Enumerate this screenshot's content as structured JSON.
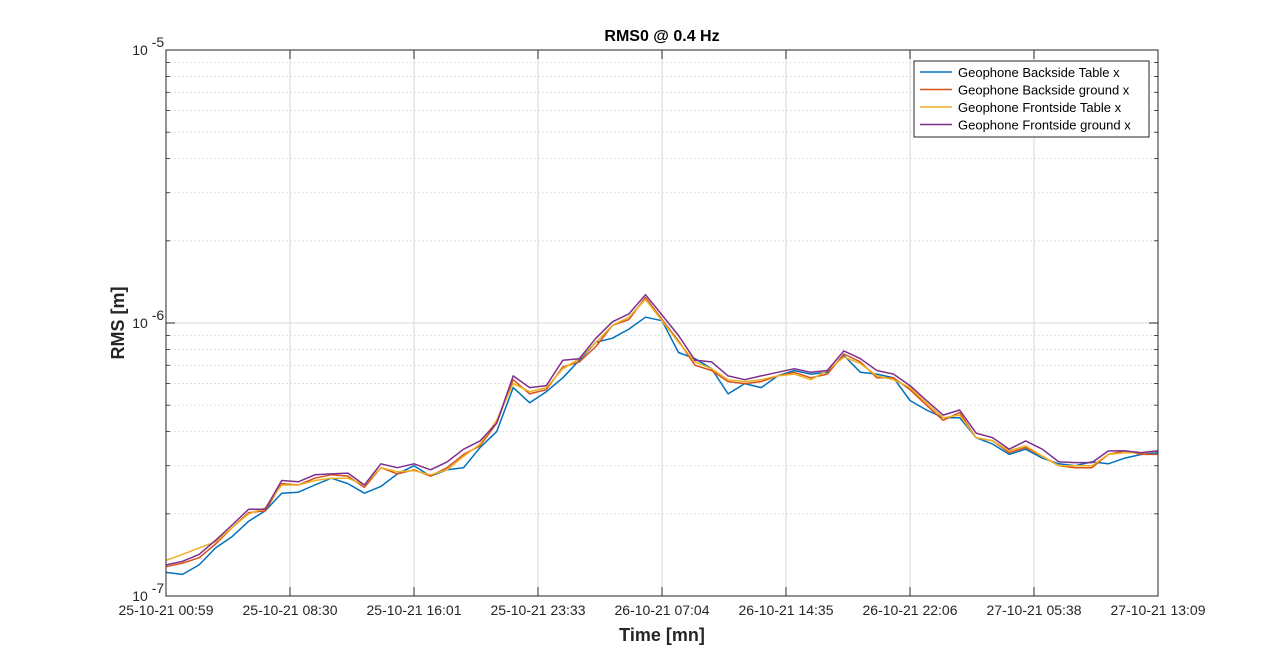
{
  "chart_data": {
    "type": "line",
    "title": "RMS0 @ 0.4 Hz",
    "xlabel": "Time [mn]",
    "ylabel": "RMS [m]",
    "y_scale": "log",
    "ylim": [
      1e-07,
      1e-05
    ],
    "y_ticks": [
      {
        "value": 1e-07,
        "base": "10",
        "exp": "-7"
      },
      {
        "value": 1e-06,
        "base": "10",
        "exp": "-6"
      },
      {
        "value": 1e-05,
        "base": "10",
        "exp": "-5"
      }
    ],
    "x_ticks": [
      "25-10-21 00:59",
      "25-10-21 08:30",
      "25-10-21 16:01",
      "25-10-21 23:33",
      "26-10-21 07:04",
      "26-10-21 14:35",
      "26-10-21 22:06",
      "27-10-21 05:38",
      "27-10-21 13:09"
    ],
    "grid": true,
    "legend_position": "top-right",
    "series": [
      {
        "name": "Geophone Backside Table x",
        "color": "#0072BD",
        "values": [
          1.22e-07,
          1.2e-07,
          1.3e-07,
          1.5e-07,
          1.65e-07,
          1.88e-07,
          2.05e-07,
          2.38e-07,
          2.4e-07,
          2.55e-07,
          2.7e-07,
          2.58e-07,
          2.38e-07,
          2.52e-07,
          2.8e-07,
          3e-07,
          2.75e-07,
          2.9e-07,
          2.95e-07,
          3.5e-07,
          4e-07,
          5.8e-07,
          5.1e-07,
          5.6e-07,
          6.3e-07,
          7.3e-07,
          8.5e-07,
          8.8e-07,
          9.5e-07,
          1.05e-06,
          1.02e-06,
          7.8e-07,
          7.4e-07,
          6.8e-07,
          5.5e-07,
          6e-07,
          5.8e-07,
          6.4e-07,
          6.7e-07,
          6.5e-07,
          6.6e-07,
          7.6e-07,
          6.6e-07,
          6.5e-07,
          6.3e-07,
          5.2e-07,
          4.8e-07,
          4.5e-07,
          4.5e-07,
          3.8e-07,
          3.6e-07,
          3.3e-07,
          3.45e-07,
          3.2e-07,
          3.05e-07,
          3e-07,
          3.1e-07,
          3.05e-07,
          3.2e-07,
          3.3e-07,
          3.35e-07
        ]
      },
      {
        "name": "Geophone Backside ground x",
        "color": "#D95319",
        "values": [
          1.28e-07,
          1.32e-07,
          1.38e-07,
          1.55e-07,
          1.78e-07,
          2.02e-07,
          2.05e-07,
          2.58e-07,
          2.55e-07,
          2.7e-07,
          2.78e-07,
          2.75e-07,
          2.5e-07,
          2.95e-07,
          2.8e-07,
          2.9e-07,
          2.75e-07,
          2.95e-07,
          3.3e-07,
          3.55e-07,
          4.3e-07,
          6.2e-07,
          5.5e-07,
          5.7e-07,
          6.9e-07,
          7.2e-07,
          8.2e-07,
          9.8e-07,
          1.03e-06,
          1.24e-06,
          1.03e-06,
          8.6e-07,
          7e-07,
          6.7e-07,
          6.1e-07,
          6e-07,
          6.1e-07,
          6.4e-07,
          6.6e-07,
          6.3e-07,
          6.5e-07,
          7.7e-07,
          7.2e-07,
          6.3e-07,
          6.3e-07,
          5.7e-07,
          5e-07,
          4.4e-07,
          4.7e-07,
          3.8e-07,
          3.7e-07,
          3.35e-07,
          3.5e-07,
          3.25e-07,
          3e-07,
          2.95e-07,
          2.95e-07,
          3.3e-07,
          3.4e-07,
          3.3e-07,
          3.3e-07
        ]
      },
      {
        "name": "Geophone Frontside Table x",
        "color": "#EDB120",
        "values": [
          1.35e-07,
          1.42e-07,
          1.5e-07,
          1.58e-07,
          1.78e-07,
          2e-07,
          2.1e-07,
          2.55e-07,
          2.55e-07,
          2.65e-07,
          2.7e-07,
          2.7e-07,
          2.55e-07,
          2.95e-07,
          2.85e-07,
          2.88e-07,
          2.78e-07,
          2.9e-07,
          3.25e-07,
          3.6e-07,
          4.4e-07,
          6e-07,
          5.6e-07,
          5.8e-07,
          6.8e-07,
          7.4e-07,
          8.5e-07,
          9.8e-07,
          1.05e-06,
          1.22e-06,
          1.02e-06,
          8.5e-07,
          7.2e-07,
          6.8e-07,
          6.2e-07,
          6.1e-07,
          6.2e-07,
          6.4e-07,
          6.5e-07,
          6.2e-07,
          6.7e-07,
          7.5e-07,
          7.1e-07,
          6.4e-07,
          6.2e-07,
          5.8e-07,
          5.1e-07,
          4.5e-07,
          4.6e-07,
          3.8e-07,
          3.7e-07,
          3.4e-07,
          3.55e-07,
          3.25e-07,
          3e-07,
          3e-07,
          3e-07,
          3.3e-07,
          3.35e-07,
          3.35e-07,
          3.4e-07
        ]
      },
      {
        "name": "Geophone Frontside ground x",
        "color": "#7E2F8E",
        "values": [
          1.3e-07,
          1.34e-07,
          1.42e-07,
          1.6e-07,
          1.82e-07,
          2.08e-07,
          2.08e-07,
          2.65e-07,
          2.62e-07,
          2.78e-07,
          2.8e-07,
          2.82e-07,
          2.55e-07,
          3.05e-07,
          2.95e-07,
          3.05e-07,
          2.9e-07,
          3.1e-07,
          3.45e-07,
          3.7e-07,
          4.3e-07,
          6.4e-07,
          5.8e-07,
          5.9e-07,
          7.3e-07,
          7.4e-07,
          8.8e-07,
          1.01e-06,
          1.08e-06,
          1.27e-06,
          1.07e-06,
          9e-07,
          7.3e-07,
          7.2e-07,
          6.4e-07,
          6.2e-07,
          6.4e-07,
          6.6e-07,
          6.8e-07,
          6.6e-07,
          6.7e-07,
          7.9e-07,
          7.4e-07,
          6.7e-07,
          6.5e-07,
          5.9e-07,
          5.2e-07,
          4.6e-07,
          4.8e-07,
          3.95e-07,
          3.8e-07,
          3.45e-07,
          3.7e-07,
          3.45e-07,
          3.1e-07,
          3.08e-07,
          3.08e-07,
          3.4e-07,
          3.4e-07,
          3.35e-07,
          3.4e-07
        ]
      }
    ]
  }
}
